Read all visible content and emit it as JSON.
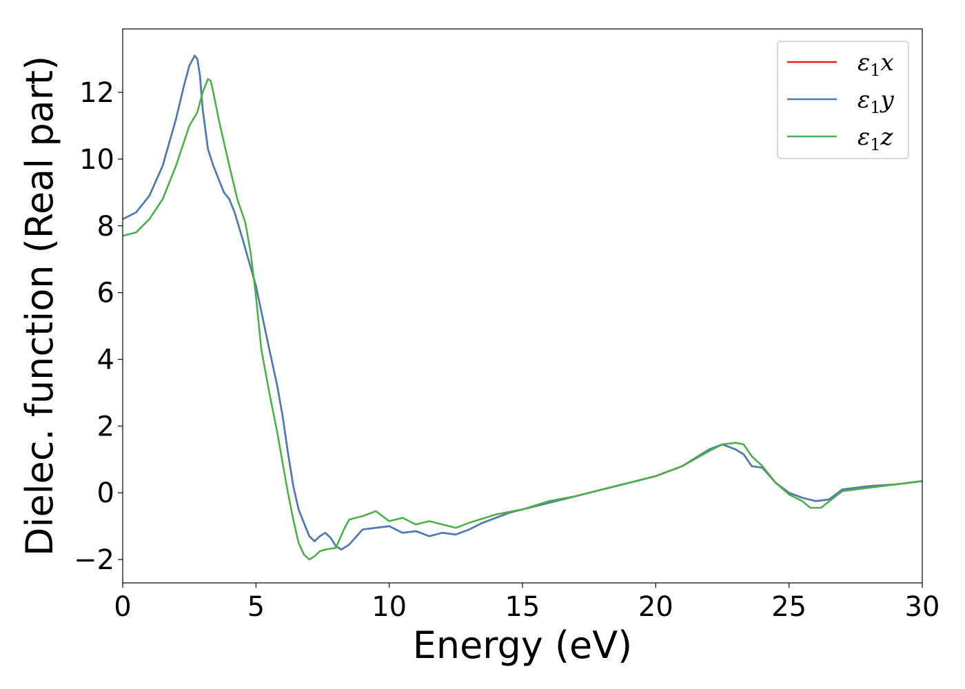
{
  "chart_data": {
    "type": "line",
    "title": "",
    "xlabel": "Energy (eV)",
    "ylabel": "Dielec. function (Real part)",
    "xlim": [
      0,
      30
    ],
    "ylim": [
      -2.7,
      13.9
    ],
    "xticks": [
      0,
      5,
      10,
      15,
      20,
      25,
      30
    ],
    "yticks": [
      -2,
      0,
      2,
      4,
      6,
      8,
      10,
      12
    ],
    "xtick_labels": [
      "0",
      "5",
      "10",
      "15",
      "20",
      "25",
      "30"
    ],
    "ytick_labels": [
      "−2",
      "0",
      "2",
      "4",
      "6",
      "8",
      "10",
      "12"
    ],
    "grid": false,
    "legend_position": "top-right",
    "series": [
      {
        "name": "ε",
        "sub": "1",
        "suffix": "x",
        "color": "#e41a1c",
        "x": [
          0,
          0.5,
          1.0,
          1.5,
          2.0,
          2.3,
          2.5,
          2.7,
          2.8,
          2.9,
          3.0,
          3.2,
          3.4,
          3.6,
          3.8,
          4.0,
          4.2,
          4.5,
          5.0,
          5.5,
          5.8,
          6.0,
          6.2,
          6.4,
          6.6,
          6.8,
          7.0,
          7.2,
          7.4,
          7.6,
          7.8,
          8.0,
          8.2,
          8.5,
          9.0,
          9.5,
          10.0,
          10.5,
          11.0,
          11.5,
          12.0,
          12.5,
          13.0,
          13.5,
          14.0,
          14.5,
          15.0,
          16.0,
          17.0,
          18.0,
          19.0,
          20.0,
          21.0,
          21.5,
          22.0,
          22.5,
          23.0,
          23.3,
          23.6,
          24.0,
          24.5,
          25.0,
          25.5,
          26.0,
          26.5,
          27.0,
          28.0,
          29.0,
          30.0
        ],
        "y": [
          8.2,
          8.4,
          8.9,
          9.8,
          11.2,
          12.2,
          12.8,
          13.1,
          13.0,
          12.5,
          11.5,
          10.3,
          9.8,
          9.4,
          9.0,
          8.8,
          8.4,
          7.6,
          6.2,
          4.3,
          3.2,
          2.3,
          1.2,
          0.2,
          -0.5,
          -0.9,
          -1.3,
          -1.45,
          -1.3,
          -1.2,
          -1.35,
          -1.6,
          -1.7,
          -1.55,
          -1.1,
          -1.05,
          -1.0,
          -1.2,
          -1.15,
          -1.3,
          -1.2,
          -1.25,
          -1.1,
          -0.9,
          -0.75,
          -0.6,
          -0.5,
          -0.3,
          -0.1,
          0.1,
          0.3,
          0.5,
          0.8,
          1.05,
          1.3,
          1.45,
          1.3,
          1.15,
          0.8,
          0.75,
          0.3,
          0.0,
          -0.15,
          -0.25,
          -0.2,
          0.1,
          0.2,
          0.25,
          0.35
        ]
      },
      {
        "name": "ε",
        "sub": "1",
        "suffix": "y",
        "color": "#4a7fb5",
        "x": [
          0,
          0.5,
          1.0,
          1.5,
          2.0,
          2.3,
          2.5,
          2.7,
          2.8,
          2.9,
          3.0,
          3.2,
          3.4,
          3.6,
          3.8,
          4.0,
          4.2,
          4.5,
          5.0,
          5.5,
          5.8,
          6.0,
          6.2,
          6.4,
          6.6,
          6.8,
          7.0,
          7.2,
          7.4,
          7.6,
          7.8,
          8.0,
          8.2,
          8.5,
          9.0,
          9.5,
          10.0,
          10.5,
          11.0,
          11.5,
          12.0,
          12.5,
          13.0,
          13.5,
          14.0,
          14.5,
          15.0,
          16.0,
          17.0,
          18.0,
          19.0,
          20.0,
          21.0,
          21.5,
          22.0,
          22.5,
          23.0,
          23.3,
          23.6,
          24.0,
          24.5,
          25.0,
          25.5,
          26.0,
          26.5,
          27.0,
          28.0,
          29.0,
          30.0
        ],
        "y": [
          8.2,
          8.4,
          8.9,
          9.8,
          11.2,
          12.2,
          12.8,
          13.1,
          13.0,
          12.5,
          11.5,
          10.3,
          9.8,
          9.4,
          9.0,
          8.8,
          8.4,
          7.6,
          6.2,
          4.3,
          3.2,
          2.3,
          1.2,
          0.2,
          -0.5,
          -0.9,
          -1.3,
          -1.45,
          -1.3,
          -1.2,
          -1.35,
          -1.6,
          -1.7,
          -1.55,
          -1.1,
          -1.05,
          -1.0,
          -1.2,
          -1.15,
          -1.3,
          -1.2,
          -1.25,
          -1.1,
          -0.9,
          -0.75,
          -0.6,
          -0.5,
          -0.3,
          -0.1,
          0.1,
          0.3,
          0.5,
          0.8,
          1.05,
          1.3,
          1.45,
          1.3,
          1.15,
          0.8,
          0.75,
          0.3,
          0.0,
          -0.15,
          -0.25,
          -0.2,
          0.1,
          0.2,
          0.25,
          0.35
        ]
      },
      {
        "name": "ε",
        "sub": "1",
        "suffix": "z",
        "color": "#4daf4a",
        "x": [
          0,
          0.5,
          1.0,
          1.5,
          2.0,
          2.5,
          2.8,
          3.0,
          3.2,
          3.3,
          3.4,
          3.6,
          3.8,
          4.0,
          4.3,
          4.6,
          4.8,
          5.0,
          5.2,
          5.5,
          5.8,
          6.0,
          6.2,
          6.4,
          6.6,
          6.8,
          7.0,
          7.2,
          7.4,
          7.6,
          8.0,
          8.3,
          8.5,
          9.0,
          9.5,
          10.0,
          10.5,
          11.0,
          11.5,
          12.0,
          12.5,
          13.0,
          14.0,
          15.0,
          16.0,
          17.0,
          18.0,
          19.0,
          20.0,
          21.0,
          22.0,
          22.5,
          23.0,
          23.3,
          23.6,
          24.0,
          24.5,
          25.0,
          25.5,
          25.8,
          26.2,
          26.6,
          27.0,
          28.0,
          29.0,
          30.0
        ],
        "y": [
          7.7,
          7.8,
          8.2,
          8.8,
          9.8,
          11.0,
          11.4,
          12.0,
          12.4,
          12.35,
          12.0,
          11.2,
          10.5,
          9.8,
          8.8,
          8.1,
          7.2,
          5.9,
          4.3,
          3.0,
          1.8,
          0.9,
          0.0,
          -0.8,
          -1.5,
          -1.85,
          -2.0,
          -1.9,
          -1.75,
          -1.7,
          -1.65,
          -1.1,
          -0.8,
          -0.7,
          -0.55,
          -0.85,
          -0.75,
          -0.95,
          -0.85,
          -0.95,
          -1.05,
          -0.9,
          -0.65,
          -0.5,
          -0.25,
          -0.1,
          0.1,
          0.3,
          0.5,
          0.8,
          1.25,
          1.45,
          1.5,
          1.45,
          1.1,
          0.8,
          0.3,
          -0.05,
          -0.25,
          -0.45,
          -0.45,
          -0.2,
          0.05,
          0.15,
          0.25,
          0.35
        ]
      }
    ]
  }
}
